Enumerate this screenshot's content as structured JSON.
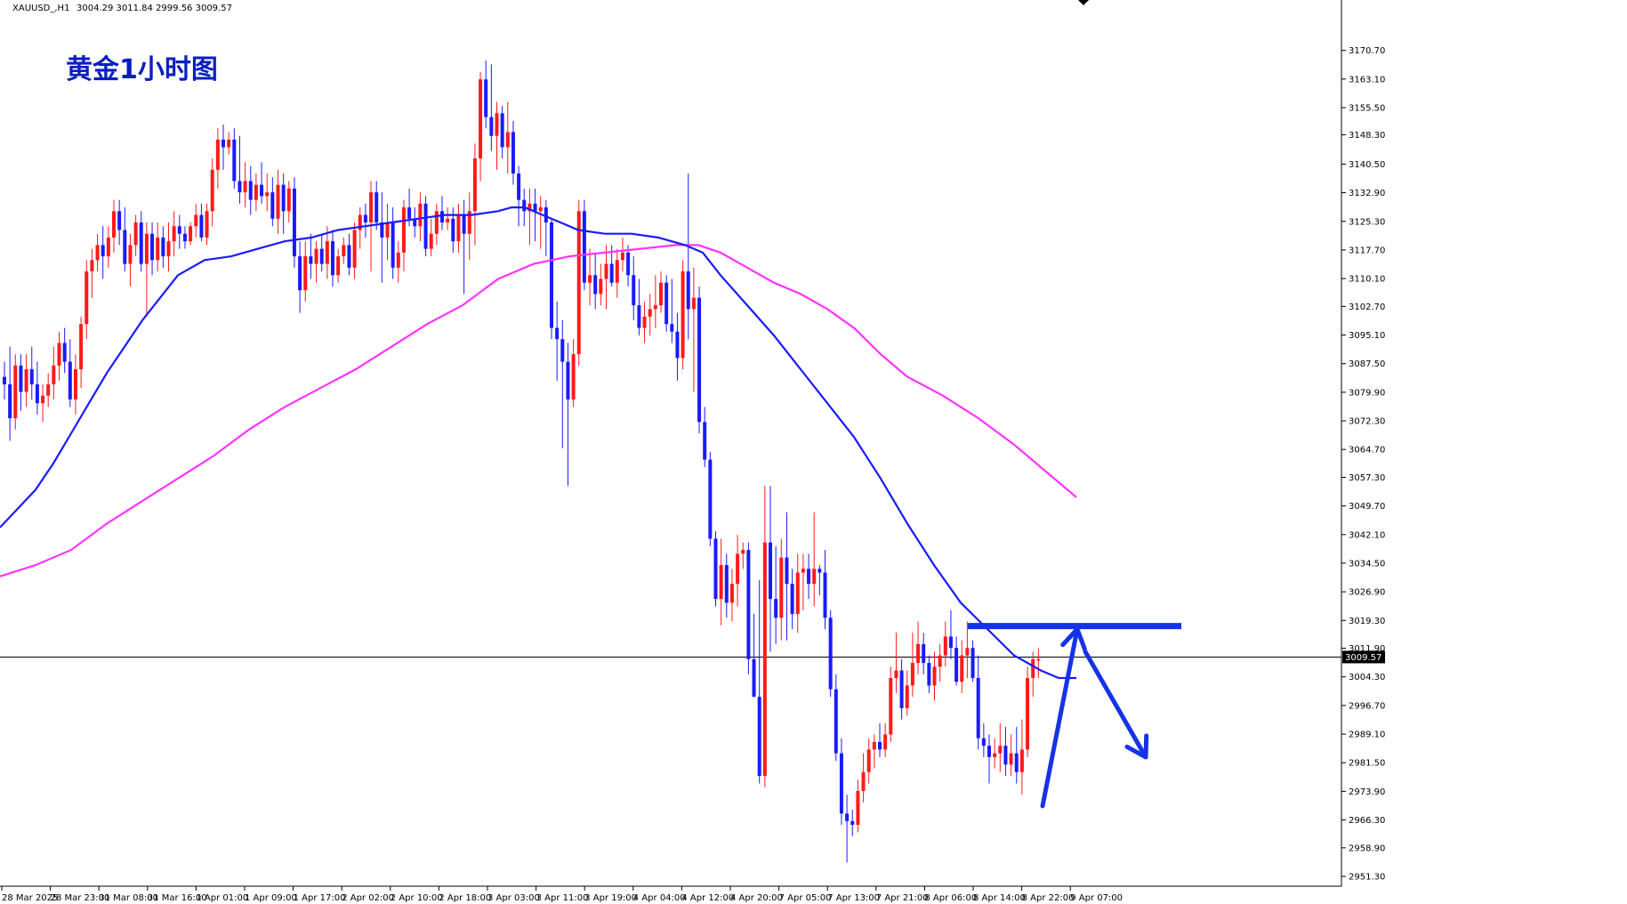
{
  "window": {
    "symbol": "XAUUSD_,H1",
    "ohlc": "3004.29 3011.84 2999.56 3009.57",
    "title": "黄金1小时图"
  },
  "colors": {
    "background": "#ffffff",
    "bull_candle": "#ff1a1a",
    "bear_candle": "#1a1aff",
    "ma_fast": "#1a1aff",
    "ma_slow": "#ff33ff",
    "annotation": "#1533e6",
    "current_price_line": "#000000"
  },
  "chart_data": {
    "type": "candlestick",
    "title": "黄金1小时图",
    "symbol": "XAUUSD_",
    "timeframe": "H1",
    "current_price": 3009.57,
    "current_price_label": "3009.57",
    "ylim": [
      2951.3,
      3177.0
    ],
    "y_ticks": [
      "3170.70",
      "3163.10",
      "3155.50",
      "3148.30",
      "3140.50",
      "3132.90",
      "3125.30",
      "3117.70",
      "3110.10",
      "3102.70",
      "3095.10",
      "3087.50",
      "3079.90",
      "3072.30",
      "3064.70",
      "3057.30",
      "3049.70",
      "3042.10",
      "3034.50",
      "3026.90",
      "3019.30",
      "3011.90",
      "3004.30",
      "2996.70",
      "2989.10",
      "2981.50",
      "2973.90",
      "2966.30",
      "2958.90",
      "2951.30"
    ],
    "x_ticks": [
      "28 Mar 2025",
      "28 Mar 23:00",
      "31 Mar 08:00",
      "31 Mar 16:00",
      "1 Apr 01:00",
      "1 Apr 09:00",
      "1 Apr 17:00",
      "2 Apr 02:00",
      "2 Apr 10:00",
      "2 Apr 18:00",
      "3 Apr 03:00",
      "3 Apr 11:00",
      "3 Apr 19:00",
      "4 Apr 04:00",
      "4 Apr 12:00",
      "4 Apr 20:00",
      "7 Apr 05:00",
      "7 Apr 13:00",
      "7 Apr 21:00",
      "8 Apr 06:00",
      "8 Apr 14:00",
      "8 Apr 22:00",
      "9 Apr 07:00"
    ],
    "candles": [
      [
        3084,
        3088,
        3078,
        3082
      ],
      [
        3082,
        3092,
        3067,
        3073
      ],
      [
        3073,
        3090,
        3070,
        3087
      ],
      [
        3087,
        3090,
        3075,
        3080
      ],
      [
        3080,
        3090,
        3076,
        3086
      ],
      [
        3086,
        3092,
        3078,
        3082
      ],
      [
        3082,
        3088,
        3074,
        3077
      ],
      [
        3077,
        3082,
        3072,
        3079
      ],
      [
        3079,
        3085,
        3076,
        3082
      ],
      [
        3082,
        3092,
        3078,
        3087
      ],
      [
        3087,
        3096,
        3083,
        3093
      ],
      [
        3093,
        3097,
        3085,
        3088
      ],
      [
        3088,
        3094,
        3076,
        3078
      ],
      [
        3078,
        3090,
        3074,
        3086
      ],
      [
        3086,
        3100,
        3081,
        3098
      ],
      [
        3098,
        3115,
        3094,
        3112
      ],
      [
        3112,
        3118,
        3105,
        3115
      ],
      [
        3115,
        3122,
        3112,
        3119
      ],
      [
        3119,
        3124,
        3110,
        3116
      ],
      [
        3116,
        3124,
        3113,
        3121
      ],
      [
        3121,
        3131,
        3117,
        3128
      ],
      [
        3128,
        3131,
        3119,
        3123
      ],
      [
        3123,
        3129,
        3112,
        3114
      ],
      [
        3114,
        3122,
        3108,
        3119
      ],
      [
        3119,
        3127,
        3116,
        3125
      ],
      [
        3125,
        3128,
        3112,
        3114
      ],
      [
        3114,
        3125,
        3100,
        3122
      ],
      [
        3122,
        3125,
        3111,
        3115
      ],
      [
        3115,
        3125,
        3112,
        3121
      ],
      [
        3121,
        3124,
        3113,
        3116
      ],
      [
        3116,
        3125,
        3112,
        3120
      ],
      [
        3120,
        3128,
        3116,
        3124
      ],
      [
        3124,
        3127,
        3118,
        3122
      ],
      [
        3122,
        3124,
        3118,
        3120
      ],
      [
        3120,
        3125,
        3119,
        3124
      ],
      [
        3124,
        3130,
        3121,
        3127
      ],
      [
        3127,
        3130,
        3120,
        3121
      ],
      [
        3121,
        3130,
        3119,
        3128
      ],
      [
        3128,
        3142,
        3124,
        3139
      ],
      [
        3139,
        3150,
        3134,
        3147
      ],
      [
        3147,
        3151,
        3139,
        3145
      ],
      [
        3145,
        3149,
        3143,
        3147
      ],
      [
        3147,
        3150,
        3134,
        3136
      ],
      [
        3136,
        3148,
        3130,
        3133
      ],
      [
        3133,
        3141,
        3129,
        3136
      ],
      [
        3136,
        3140,
        3127,
        3131
      ],
      [
        3131,
        3138,
        3128,
        3135
      ],
      [
        3135,
        3141,
        3130,
        3132
      ],
      [
        3132,
        3138,
        3128,
        3133
      ],
      [
        3133,
        3137,
        3124,
        3126
      ],
      [
        3126,
        3139,
        3122,
        3135
      ],
      [
        3135,
        3138,
        3122,
        3128
      ],
      [
        3128,
        3136,
        3125,
        3134
      ],
      [
        3134,
        3137,
        3113,
        3116
      ],
      [
        3116,
        3120,
        3101,
        3107
      ],
      [
        3107,
        3120,
        3104,
        3116
      ],
      [
        3116,
        3122,
        3110,
        3114
      ],
      [
        3114,
        3120,
        3109,
        3118
      ],
      [
        3118,
        3122,
        3112,
        3114
      ],
      [
        3114,
        3124,
        3110,
        3120
      ],
      [
        3120,
        3123,
        3108,
        3111
      ],
      [
        3111,
        3118,
        3109,
        3116
      ],
      [
        3116,
        3121,
        3114,
        3119
      ],
      [
        3119,
        3122,
        3111,
        3113
      ],
      [
        3113,
        3125,
        3110,
        3123
      ],
      [
        3123,
        3129,
        3118,
        3127
      ],
      [
        3127,
        3130,
        3121,
        3125
      ],
      [
        3125,
        3136,
        3112,
        3133
      ],
      [
        3133,
        3136,
        3123,
        3125
      ],
      [
        3125,
        3133,
        3109,
        3121
      ],
      [
        3121,
        3130,
        3115,
        3125
      ],
      [
        3125,
        3129,
        3110,
        3113
      ],
      [
        3113,
        3120,
        3109,
        3117
      ],
      [
        3117,
        3131,
        3112,
        3129
      ],
      [
        3129,
        3134,
        3124,
        3126
      ],
      [
        3126,
        3129,
        3121,
        3124
      ],
      [
        3124,
        3133,
        3120,
        3130
      ],
      [
        3130,
        3132,
        3116,
        3118
      ],
      [
        3118,
        3126,
        3116,
        3122
      ],
      [
        3122,
        3130,
        3119,
        3128
      ],
      [
        3128,
        3132,
        3123,
        3125
      ],
      [
        3125,
        3129,
        3123,
        3126
      ],
      [
        3126,
        3129,
        3117,
        3120
      ],
      [
        3120,
        3130,
        3117,
        3127
      ],
      [
        3127,
        3131,
        3106,
        3122
      ],
      [
        3122,
        3133,
        3115,
        3128
      ],
      [
        3128,
        3146,
        3119,
        3142
      ],
      [
        3142,
        3165,
        3136,
        3163
      ],
      [
        3163,
        3168,
        3150,
        3153
      ],
      [
        3153,
        3167,
        3144,
        3148
      ],
      [
        3148,
        3157,
        3139,
        3154
      ],
      [
        3154,
        3156,
        3142,
        3145
      ],
      [
        3145,
        3157,
        3138,
        3149
      ],
      [
        3149,
        3152,
        3135,
        3138
      ],
      [
        3138,
        3140,
        3124,
        3131
      ],
      [
        3131,
        3134,
        3124,
        3128
      ],
      [
        3128,
        3134,
        3119,
        3130
      ],
      [
        3130,
        3134,
        3120,
        3128
      ],
      [
        3128,
        3132,
        3118,
        3129
      ],
      [
        3129,
        3131,
        3116,
        3125
      ],
      [
        3125,
        3126,
        3094,
        3097
      ],
      [
        3097,
        3104,
        3083,
        3094
      ],
      [
        3094,
        3099,
        3065,
        3088
      ],
      [
        3088,
        3093,
        3055,
        3078
      ],
      [
        3078,
        3094,
        3076,
        3090
      ],
      [
        3090,
        3131,
        3087,
        3128
      ],
      [
        3128,
        3131,
        3107,
        3109
      ],
      [
        3109,
        3118,
        3103,
        3111
      ],
      [
        3111,
        3117,
        3102,
        3106
      ],
      [
        3106,
        3114,
        3103,
        3110
      ],
      [
        3110,
        3119,
        3102,
        3114
      ],
      [
        3114,
        3119,
        3108,
        3109
      ],
      [
        3109,
        3118,
        3105,
        3115
      ],
      [
        3115,
        3121,
        3112,
        3117
      ],
      [
        3117,
        3119,
        3108,
        3111
      ],
      [
        3111,
        3116,
        3099,
        3103
      ],
      [
        3103,
        3110,
        3095,
        3097
      ],
      [
        3097,
        3104,
        3093,
        3100
      ],
      [
        3100,
        3106,
        3095,
        3102
      ],
      [
        3102,
        3111,
        3097,
        3103
      ],
      [
        3103,
        3112,
        3101,
        3109
      ],
      [
        3109,
        3111,
        3096,
        3098
      ],
      [
        3098,
        3110,
        3093,
        3096
      ],
      [
        3096,
        3101,
        3083,
        3089
      ],
      [
        3089,
        3115,
        3086,
        3112
      ],
      [
        3112,
        3138,
        3094,
        3102
      ],
      [
        3102,
        3113,
        3080,
        3105
      ],
      [
        3105,
        3108,
        3069,
        3072
      ],
      [
        3072,
        3076,
        3060,
        3062
      ],
      [
        3062,
        3064,
        3039,
        3041
      ],
      [
        3041,
        3043,
        3023,
        3025
      ],
      [
        3025,
        3041,
        3018,
        3034
      ],
      [
        3034,
        3037,
        3020,
        3024
      ],
      [
        3024,
        3033,
        3019,
        3029
      ],
      [
        3029,
        3042,
        3023,
        3037
      ],
      [
        3037,
        3040,
        3033,
        3038
      ],
      [
        3038,
        3040,
        3005,
        3009
      ],
      [
        3009,
        3021,
        2999,
        2999
      ],
      [
        2999,
        3030,
        2976,
        2978
      ],
      [
        2978,
        3055,
        2975,
        3040
      ],
      [
        3040,
        3055,
        3011,
        3025
      ],
      [
        3025,
        3039,
        3013,
        3020
      ],
      [
        3020,
        3041,
        3014,
        3036
      ],
      [
        3036,
        3048,
        3014,
        3029
      ],
      [
        3029,
        3033,
        3017,
        3021
      ],
      [
        3021,
        3037,
        3016,
        3032
      ],
      [
        3032,
        3037,
        3022,
        3033
      ],
      [
        3033,
        3037,
        3025,
        3029
      ],
      [
        3029,
        3048,
        3023,
        3033
      ],
      [
        3033,
        3034,
        3026,
        3032
      ],
      [
        3032,
        3038,
        3017,
        3020
      ],
      [
        3020,
        3022,
        2999,
        3001
      ],
      [
        3001,
        3005,
        2982,
        2984
      ],
      [
        2984,
        2988,
        2965,
        2968
      ],
      [
        2968,
        2973,
        2955,
        2966
      ],
      [
        2966,
        2969,
        2962,
        2965
      ],
      [
        2965,
        2977,
        2963,
        2974
      ],
      [
        2974,
        2984,
        2971,
        2979
      ],
      [
        2979,
        2988,
        2976,
        2985
      ],
      [
        2985,
        2989,
        2980,
        2987
      ],
      [
        2987,
        2992,
        2983,
        2985
      ],
      [
        2985,
        2992,
        2983,
        2989
      ],
      [
        2989,
        3007,
        2987,
        3004
      ],
      [
        3004,
        3016,
        3000,
        3006
      ],
      [
        3006,
        3009,
        2993,
        2996
      ],
      [
        2996,
        3006,
        2994,
        3002
      ],
      [
        3002,
        3016,
        2999,
        3008
      ],
      [
        3008,
        3019,
        3005,
        3013
      ],
      [
        3013,
        3016,
        3005,
        3008
      ],
      [
        3008,
        3010,
        3000,
        3002
      ],
      [
        3002,
        3011,
        2998,
        3007
      ],
      [
        3007,
        3013,
        3003,
        3010
      ],
      [
        3010,
        3019,
        3007,
        3015
      ],
      [
        3015,
        3022,
        3009,
        3012
      ],
      [
        3012,
        3015,
        3002,
        3003
      ],
      [
        3003,
        3014,
        3000,
        3010
      ],
      [
        3010,
        3019,
        3004,
        3012
      ],
      [
        3012,
        3014,
        3003,
        3004
      ],
      [
        3004,
        3010,
        2985,
        2988
      ],
      [
        2988,
        2992,
        2983,
        2986
      ],
      [
        2986,
        2989,
        2976,
        2983
      ],
      [
        2983,
        2988,
        2980,
        2984
      ],
      [
        2984,
        2992,
        2979,
        2986
      ],
      [
        2986,
        2991,
        2978,
        2981
      ],
      [
        2981,
        2989,
        2978,
        2984
      ],
      [
        2984,
        2991,
        2976,
        2979
      ],
      [
        2979,
        2993,
        2973,
        2985
      ],
      [
        2985,
        3007,
        2983,
        3004
      ],
      [
        3004,
        3011,
        2999,
        3009
      ],
      [
        3009,
        3012,
        3004,
        3009
      ]
    ],
    "ma_fast": [
      [
        0,
        3044
      ],
      [
        20,
        3049
      ],
      [
        40,
        3054
      ],
      [
        60,
        3061
      ],
      [
        80,
        3069
      ],
      [
        100,
        3077
      ],
      [
        120,
        3085
      ],
      [
        140,
        3092
      ],
      [
        160,
        3099
      ],
      [
        180,
        3105
      ],
      [
        200,
        3111
      ],
      [
        230,
        3115
      ],
      [
        260,
        3116
      ],
      [
        290,
        3118
      ],
      [
        320,
        3120
      ],
      [
        350,
        3121
      ],
      [
        380,
        3123
      ],
      [
        410,
        3124
      ],
      [
        440,
        3125
      ],
      [
        470,
        3126
      ],
      [
        500,
        3127
      ],
      [
        530,
        3127
      ],
      [
        560,
        3128
      ],
      [
        575,
        3129
      ],
      [
        590,
        3129
      ],
      [
        610,
        3127
      ],
      [
        630,
        3125
      ],
      [
        650,
        3123
      ],
      [
        680,
        3122
      ],
      [
        710,
        3122
      ],
      [
        740,
        3121
      ],
      [
        770,
        3119
      ],
      [
        790,
        3117
      ],
      [
        810,
        3111
      ],
      [
        840,
        3103
      ],
      [
        870,
        3095
      ],
      [
        900,
        3086
      ],
      [
        930,
        3077
      ],
      [
        960,
        3068
      ],
      [
        990,
        3057
      ],
      [
        1020,
        3045
      ],
      [
        1050,
        3034
      ],
      [
        1080,
        3024
      ],
      [
        1110,
        3017
      ],
      [
        1140,
        3010
      ],
      [
        1170,
        3006
      ],
      [
        1190,
        3004
      ],
      [
        1210,
        3004
      ]
    ],
    "ma_slow": [
      [
        0,
        3031
      ],
      [
        40,
        3034
      ],
      [
        80,
        3038
      ],
      [
        120,
        3045
      ],
      [
        160,
        3051
      ],
      [
        200,
        3057
      ],
      [
        240,
        3063
      ],
      [
        280,
        3070
      ],
      [
        320,
        3076
      ],
      [
        360,
        3081
      ],
      [
        400,
        3086
      ],
      [
        440,
        3092
      ],
      [
        480,
        3098
      ],
      [
        520,
        3103
      ],
      [
        560,
        3110
      ],
      [
        600,
        3114
      ],
      [
        640,
        3116
      ],
      [
        680,
        3117
      ],
      [
        720,
        3118
      ],
      [
        760,
        3119
      ],
      [
        785,
        3119
      ],
      [
        810,
        3117
      ],
      [
        840,
        3113
      ],
      [
        870,
        3109
      ],
      [
        900,
        3106
      ],
      [
        930,
        3102
      ],
      [
        960,
        3097
      ],
      [
        990,
        3090
      ],
      [
        1020,
        3084
      ],
      [
        1060,
        3079
      ],
      [
        1100,
        3073
      ],
      [
        1140,
        3066
      ],
      [
        1180,
        3058
      ],
      [
        1210,
        3052
      ]
    ],
    "annotations": {
      "resistance_level": 3017.8,
      "up_arrow_from": [
        1172,
        2970
      ],
      "up_arrow_to": [
        1211,
        3017
      ],
      "down_arrow_from": [
        1220,
        3011
      ],
      "down_arrow_to": [
        1288,
        2983
      ]
    }
  }
}
